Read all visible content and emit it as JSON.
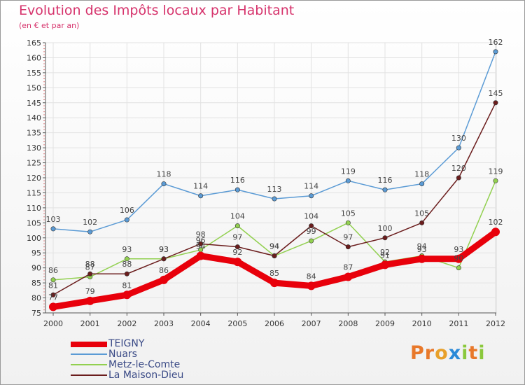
{
  "title": "Evolution des Impôts locaux par Habitant",
  "subtitle": "(en € et par an)",
  "logo": {
    "text": "Proxiti",
    "letters": [
      "P",
      "r",
      "o",
      "x",
      "i",
      "t",
      "i"
    ],
    "colors": [
      "#e8782a",
      "#e8782a",
      "#e8a02a",
      "#2a8ad8",
      "#8bc83c",
      "#e8782a",
      "#8bc83c"
    ]
  },
  "chart_data": {
    "type": "line",
    "title": "Evolution des Impôts locaux par Habitant",
    "subtitle": "(en € et par an)",
    "xlabel": "",
    "ylabel": "",
    "ylim": [
      75,
      165
    ],
    "y_ticks": [
      75,
      80,
      85,
      90,
      95,
      100,
      105,
      110,
      115,
      120,
      125,
      130,
      135,
      140,
      145,
      150,
      155,
      160,
      165
    ],
    "categories": [
      "2000",
      "2001",
      "2002",
      "2003",
      "2004",
      "2005",
      "2006",
      "2007",
      "2008",
      "2009",
      "2010",
      "2011",
      "2012"
    ],
    "legend_position": "bottom-left",
    "grid": true,
    "series": [
      {
        "name": "TEIGNY",
        "color": "#e8000b",
        "values": [
          77,
          79,
          81,
          86,
          94,
          92,
          85,
          84,
          87,
          91,
          93,
          93,
          102
        ]
      },
      {
        "name": "Nuars",
        "color": "#5b9bd5",
        "values": [
          103,
          102,
          106,
          118,
          114,
          116,
          113,
          114,
          119,
          116,
          118,
          130,
          162
        ]
      },
      {
        "name": "Metz-le-Comte",
        "color": "#92d050",
        "values": [
          86,
          87,
          93,
          93,
          96,
          104,
          94,
          99,
          105,
          92,
          94,
          90,
          119
        ]
      },
      {
        "name": "La Maison-Dieu",
        "color": "#6b1d1d",
        "values": [
          81,
          88,
          88,
          93,
          98,
          97,
          94,
          104,
          97,
          100,
          105,
          120,
          145
        ]
      }
    ]
  }
}
